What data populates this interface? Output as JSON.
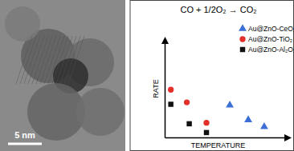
{
  "chart_data": {
    "type": "scatter",
    "title": "CO + 1/2O₂ → CO₂",
    "x_label": "TEMPERATURE",
    "y_label": "RATE",
    "xlim": [
      0,
      10
    ],
    "ylim": [
      0,
      10
    ],
    "xticks": [],
    "yticks": [],
    "tick_labels": false,
    "grid": false,
    "legend": "upper right",
    "series": [
      {
        "name": "Au@ZnO-CeO₂",
        "color": "#3b6fd6",
        "marker": "triangle",
        "x": [
          5.3,
          6.8,
          8.1
        ],
        "values": [
          3.3,
          1.8,
          1.1
        ]
      },
      {
        "name": "Au@ZnO-TiO₂",
        "color": "#e3302a",
        "marker": "circle",
        "x": [
          0.5,
          1.8,
          3.4
        ],
        "values": [
          4.9,
          3.6,
          1.5
        ]
      },
      {
        "name": "Au@ZnO-Al₂O₃",
        "color": "#111111",
        "marker": "square",
        "x": [
          0.5,
          2.0,
          3.4
        ],
        "values": [
          3.4,
          1.4,
          0.5
        ]
      }
    ]
  },
  "micrograph": {
    "scale_bar": "5 nm"
  }
}
